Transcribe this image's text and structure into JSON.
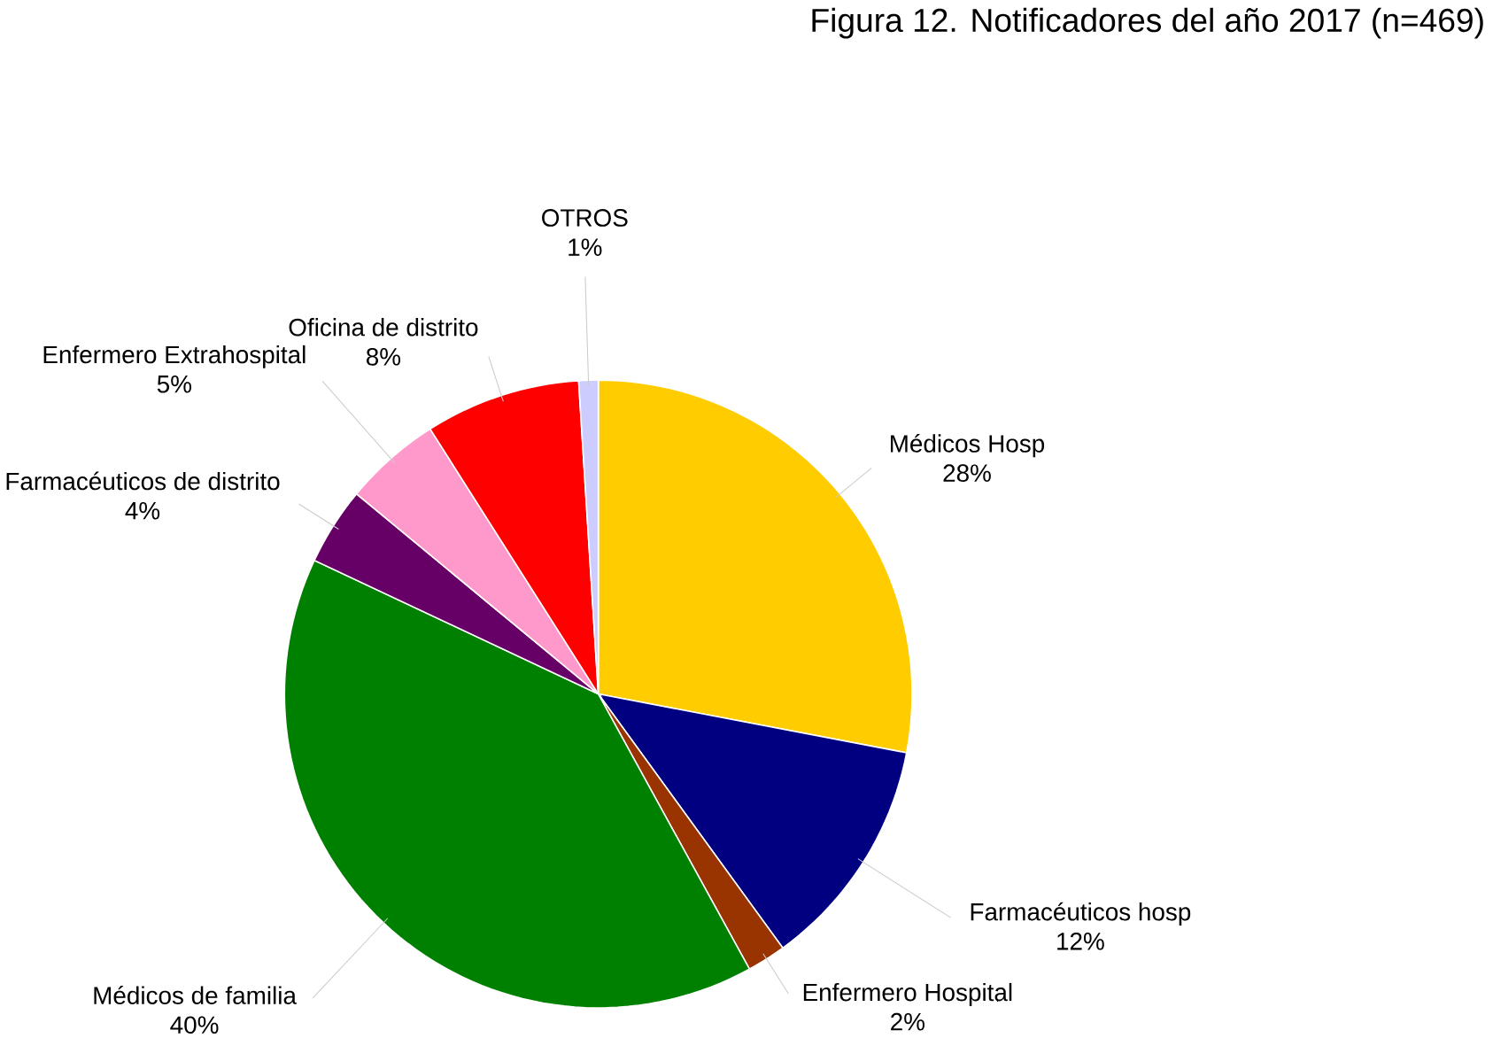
{
  "chart_data": {
    "type": "pie",
    "title": "Figura 12. Notificadores del año 2017 (n=469)",
    "categories": [
      "Médicos Hosp",
      "Farmacéuticos hosp",
      "Enfermero Hospital",
      "Médicos de familia",
      "Farmacéuticos de distrito",
      "Enfermero Extrahospital",
      "Oficina de distrito",
      "OTROS"
    ],
    "values": [
      28,
      12,
      2,
      40,
      4,
      5,
      8,
      1
    ],
    "colors": [
      "#ffcc00",
      "#000080",
      "#993300",
      "#008000",
      "#660066",
      "#ff99cc",
      "#ff0000",
      "#ccccff"
    ],
    "value_labels": [
      "28%",
      "12%",
      "2%",
      "40%",
      "4%",
      "5%",
      "8%",
      "1%"
    ]
  }
}
